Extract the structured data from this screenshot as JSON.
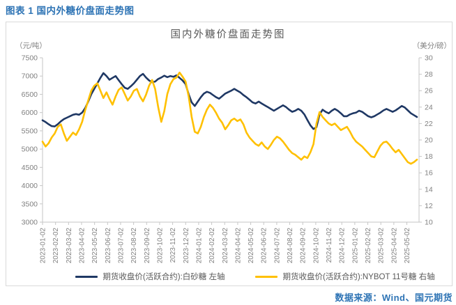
{
  "page": {
    "header": "图表 1 国内外糖价盘面走势图",
    "source": "数据来源：Wind、国元期货"
  },
  "colors": {
    "accent_blue": "#2E74B5",
    "navy_series": "#1F3864",
    "gold_series": "#FFC000",
    "axis_line": "#C6C6C6",
    "tick_label": "#808080",
    "title_gray": "#595959",
    "card_border": "#D9D9D9"
  },
  "chart_data": {
    "type": "line",
    "title": "国内外糖价盘面走势图",
    "grid": "off",
    "legend_position": "bottom",
    "sampling": "weekly points from 2023-01-02 to 2025-05-09",
    "left_axis": {
      "unit": "（元/吨）",
      "min": 3000,
      "max": 7500,
      "step": 500,
      "ticks": [
        "7500",
        "7000",
        "6500",
        "6000",
        "5500",
        "5000",
        "4500",
        "4000",
        "3500",
        "3000"
      ]
    },
    "right_axis": {
      "unit": "（美分/磅）",
      "min": 10,
      "max": 30,
      "step": 2,
      "ticks": [
        "30",
        "28",
        "26",
        "24",
        "22",
        "20",
        "18",
        "16",
        "14",
        "12",
        "10"
      ]
    },
    "x_ticks": [
      "2023-01-02",
      "2023-02-02",
      "2023-03-02",
      "2023-04-02",
      "2023-05-02",
      "2023-06-02",
      "2023-07-02",
      "2023-08-02",
      "2023-09-02",
      "2023-10-02",
      "2023-11-02",
      "2023-12-02",
      "2024-01-02",
      "2024-02-02",
      "2024-03-02",
      "2024-04-02",
      "2024-05-02",
      "2024-06-02",
      "2024-07-02",
      "2024-08-02",
      "2024-09-02",
      "2024-10-02",
      "2024-11-02",
      "2024-12-02",
      "2025-01-02",
      "2025-02-02",
      "2025-03-02",
      "2025-04-02",
      "2025-05-02"
    ],
    "series": [
      {
        "name": "期货收盘价(活跃合约):白砂糖 左轴",
        "axis": "left",
        "color": "#1F3864",
        "values": [
          5790,
          5740,
          5680,
          5630,
          5620,
          5680,
          5760,
          5820,
          5860,
          5900,
          5940,
          5960,
          5940,
          6000,
          6120,
          6300,
          6500,
          6650,
          6800,
          6950,
          7080,
          7000,
          6900,
          6950,
          7000,
          6890,
          6780,
          6680,
          6650,
          6720,
          6800,
          6900,
          7000,
          7060,
          6960,
          6880,
          6830,
          6850,
          6920,
          6960,
          7010,
          6970,
          7000,
          6980,
          7020,
          6950,
          6880,
          6780,
          6500,
          6280,
          6180,
          6300,
          6420,
          6520,
          6570,
          6540,
          6480,
          6420,
          6380,
          6450,
          6520,
          6560,
          6600,
          6650,
          6600,
          6550,
          6480,
          6420,
          6350,
          6280,
          6250,
          6300,
          6250,
          6200,
          6150,
          6100,
          6050,
          6100,
          6150,
          6200,
          6150,
          6080,
          6020,
          6050,
          6100,
          6050,
          5950,
          5800,
          5650,
          5550,
          5600,
          5950,
          6080,
          6020,
          5980,
          6050,
          6100,
          6050,
          5980,
          5900,
          5900,
          5950,
          5980,
          6000,
          6050,
          6020,
          5960,
          5900,
          5870,
          5900,
          5950,
          6000,
          6060,
          6100,
          6060,
          6020,
          6060,
          6120,
          6180,
          6140,
          6060,
          5980,
          5930,
          5880
        ]
      },
      {
        "name": "期货收盘价(活跃合约):NYBOT 11号糖 右轴",
        "axis": "right",
        "color": "#FFC000",
        "values": [
          19.8,
          19.2,
          19.6,
          20.3,
          20.8,
          21.6,
          21.9,
          20.8,
          19.9,
          20.4,
          20.9,
          20.6,
          21.3,
          22.2,
          23.6,
          24.8,
          26.0,
          26.6,
          26.9,
          26.0,
          25.1,
          25.8,
          25.0,
          24.3,
          25.3,
          26.1,
          26.4,
          25.6,
          24.8,
          25.3,
          26.0,
          26.2,
          25.3,
          24.7,
          25.5,
          26.6,
          27.3,
          26.2,
          24.0,
          22.2,
          23.5,
          25.6,
          26.8,
          27.4,
          27.6,
          28.2,
          27.7,
          27.1,
          25.3,
          22.8,
          21.0,
          20.8,
          21.6,
          22.8,
          23.7,
          24.3,
          23.9,
          23.3,
          22.6,
          22.1,
          21.3,
          21.8,
          22.4,
          22.6,
          22.3,
          22.5,
          21.9,
          20.9,
          20.3,
          19.9,
          19.5,
          19.3,
          19.7,
          19.2,
          18.9,
          19.4,
          20.0,
          20.4,
          20.2,
          19.8,
          19.3,
          18.8,
          18.4,
          18.2,
          17.9,
          17.6,
          18.0,
          17.8,
          18.5,
          19.5,
          22.0,
          23.4,
          22.8,
          22.4,
          22.0,
          21.8,
          22.0,
          21.6,
          21.2,
          21.4,
          21.6,
          21.0,
          20.3,
          19.8,
          19.5,
          19.2,
          18.8,
          18.4,
          18.0,
          17.9,
          18.6,
          19.3,
          19.7,
          19.8,
          19.4,
          18.9,
          18.5,
          18.8,
          18.3,
          17.8,
          17.3,
          17.1,
          17.3,
          17.6
        ]
      }
    ]
  }
}
